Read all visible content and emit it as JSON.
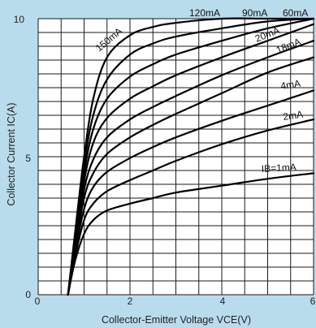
{
  "chart_data": {
    "type": "line",
    "title": "",
    "xlabel": "Collector-Emitter Voltage VCE(V)",
    "ylabel": "Collector Current IC(A)",
    "xlim": [
      0,
      6
    ],
    "ylim": [
      0,
      10
    ],
    "x_ticks": [
      "0",
      "2",
      "4",
      "6"
    ],
    "y_ticks": [
      "0",
      "5",
      "10"
    ],
    "grid": true,
    "series": [
      {
        "name": "150mA",
        "label_text": "150mA",
        "x": [
          0.65,
          0.8,
          1.0,
          1.2,
          1.5,
          2.0,
          2.5,
          3.0,
          4.0,
          5.0,
          6.0
        ],
        "y": [
          0,
          2.2,
          5.0,
          7.1,
          8.6,
          9.4,
          9.7,
          9.85,
          10.0,
          10.0,
          10.0
        ]
      },
      {
        "name": "120mA",
        "label_text": "120mA",
        "x": [
          0.65,
          0.8,
          1.0,
          1.2,
          1.5,
          2.0,
          2.5,
          3.0,
          4.0,
          5.0,
          6.0
        ],
        "y": [
          0,
          2.0,
          4.7,
          6.5,
          7.8,
          8.7,
          9.1,
          9.35,
          9.65,
          9.9,
          10.0
        ]
      },
      {
        "name": "90mA",
        "label_text": "90mA",
        "x": [
          0.65,
          0.8,
          1.0,
          1.2,
          1.5,
          2.0,
          2.5,
          3.0,
          4.0,
          5.0,
          6.0
        ],
        "y": [
          0,
          1.9,
          4.4,
          6.0,
          7.1,
          7.9,
          8.35,
          8.7,
          9.2,
          9.65,
          10.0
        ]
      },
      {
        "name": "60mA",
        "label_text": "60mA",
        "x": [
          0.65,
          0.8,
          1.0,
          1.2,
          1.5,
          2.0,
          2.5,
          3.0,
          4.0,
          5.0,
          6.0
        ],
        "y": [
          0,
          1.8,
          4.1,
          5.5,
          6.4,
          7.1,
          7.55,
          7.95,
          8.6,
          9.2,
          9.8
        ]
      },
      {
        "name": "20mA",
        "label_text": "20mA",
        "x": [
          0.65,
          0.8,
          1.0,
          1.2,
          1.5,
          2.0,
          2.5,
          3.0,
          4.0,
          5.0,
          6.0
        ],
        "y": [
          0,
          1.7,
          3.8,
          4.9,
          5.7,
          6.35,
          6.8,
          7.2,
          7.95,
          8.6,
          9.2
        ]
      },
      {
        "name": "18mA",
        "label_text": "18mA",
        "x": [
          0.65,
          0.8,
          1.0,
          1.2,
          1.5,
          2.0,
          2.5,
          3.0,
          4.0,
          5.0,
          6.0
        ],
        "y": [
          0,
          1.6,
          3.5,
          4.4,
          5.1,
          5.7,
          6.15,
          6.55,
          7.3,
          8.05,
          8.6
        ]
      },
      {
        "name": "4mA",
        "label_text": "4mA",
        "x": [
          0.65,
          0.8,
          1.0,
          1.2,
          1.5,
          2.0,
          2.5,
          3.0,
          4.0,
          5.0,
          6.0
        ],
        "y": [
          0,
          1.5,
          3.1,
          3.9,
          4.45,
          4.95,
          5.35,
          5.7,
          6.3,
          6.85,
          7.4
        ]
      },
      {
        "name": "2mA",
        "label_text": "2mA",
        "x": [
          0.65,
          0.8,
          1.0,
          1.2,
          1.5,
          2.0,
          2.5,
          3.0,
          4.0,
          5.0,
          6.0
        ],
        "y": [
          0,
          1.35,
          2.7,
          3.3,
          3.75,
          4.15,
          4.5,
          4.85,
          5.45,
          5.95,
          6.35
        ]
      },
      {
        "name": "IB=1mA",
        "label_text": "IB=1mA",
        "x": [
          0.65,
          0.8,
          1.0,
          1.2,
          1.5,
          2.0,
          2.5,
          3.0,
          4.0,
          5.0,
          6.0
        ],
        "y": [
          0,
          1.2,
          2.2,
          2.7,
          3.05,
          3.3,
          3.5,
          3.7,
          3.95,
          4.2,
          4.4
        ]
      }
    ]
  },
  "colors": {
    "background": "#b9dced",
    "plot_area": "#ffffff",
    "grid": "#1a1a1a",
    "curve": "#000000"
  }
}
